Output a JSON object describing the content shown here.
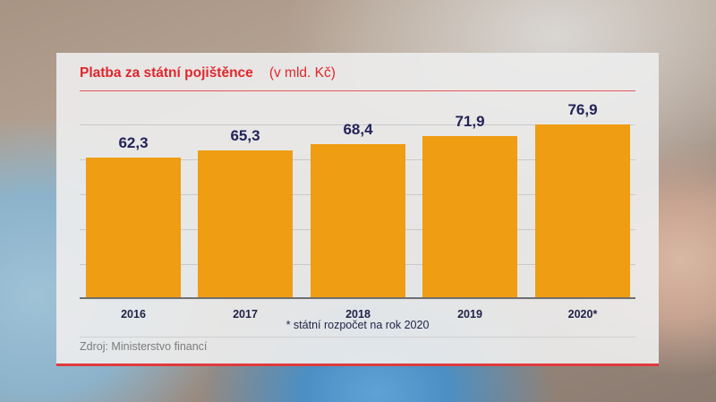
{
  "card": {
    "title": "Platba za státní pojištěnce",
    "unit": "(v mld. Kč)",
    "footnote": "* státní rozpočet na rok 2020",
    "source": "Zdroj: Ministerstvo financí"
  },
  "colors": {
    "title": "#e0262c",
    "bar": "#ef9d13",
    "value_label": "#23235a",
    "accent_border": "#e03a3e"
  },
  "bars": [
    {
      "label": "2016",
      "value": "62,3"
    },
    {
      "label": "2017",
      "value": "65,3"
    },
    {
      "label": "2018",
      "value": "68,4"
    },
    {
      "label": "2019",
      "value": "71,9"
    },
    {
      "label": "2020*",
      "value": "76,9"
    }
  ],
  "chart_data": {
    "type": "bar",
    "title": "Platba za státní pojištěnce",
    "subtitle": "(v mld. Kč)",
    "categories": [
      "2016",
      "2017",
      "2018",
      "2019",
      "2020*"
    ],
    "values": [
      62.3,
      65.3,
      68.4,
      71.9,
      76.9
    ],
    "xlabel": "",
    "ylabel": "mld. Kč",
    "ylim": [
      0,
      77
    ],
    "grid": true,
    "legend": null,
    "annotations": [
      "* státní rozpočet na rok 2020",
      "Zdroj: Ministerstvo financí"
    ]
  }
}
